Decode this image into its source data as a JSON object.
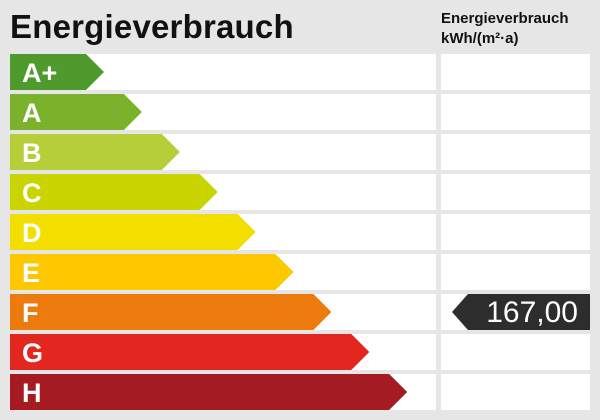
{
  "title": "Energieverbrauch",
  "unit_header": {
    "line1": "Energieverbrauch",
    "line2": "kWh/(m²·a)"
  },
  "chart_data": {
    "type": "energy-rating-scale",
    "title": "Energieverbrauch",
    "ylabel": "Energieverbrauch kWh/(m²·a)",
    "classes": [
      {
        "label": "A+",
        "color": "#4e9a2c"
      },
      {
        "label": "A",
        "color": "#7bb22b"
      },
      {
        "label": "B",
        "color": "#b6ce38"
      },
      {
        "label": "C",
        "color": "#c9d400"
      },
      {
        "label": "D",
        "color": "#f2df00"
      },
      {
        "label": "E",
        "color": "#fdc800"
      },
      {
        "label": "F",
        "color": "#ec7a0c"
      },
      {
        "label": "G",
        "color": "#e3261f"
      },
      {
        "label": "H",
        "color": "#a51b22"
      }
    ],
    "selected_class": "F",
    "value": "167,00",
    "marker_color": "#2d2d2d"
  }
}
